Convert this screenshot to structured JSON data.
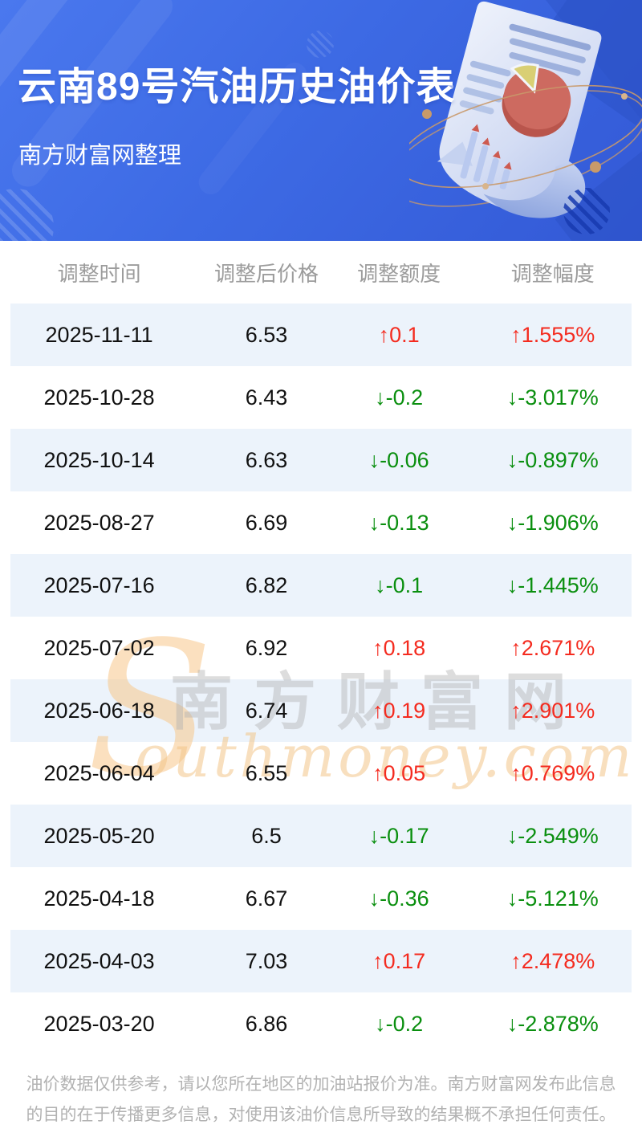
{
  "header": {
    "title": "云南89号汽油历史油价表",
    "subtitle": "南方财富网整理"
  },
  "table": {
    "columns": [
      "调整时间",
      "调整后价格",
      "调整额度",
      "调整幅度"
    ],
    "rows": [
      {
        "date": "2025-11-11",
        "price": "6.53",
        "change": "↑0.1",
        "percent": "↑1.555%",
        "trend": "up"
      },
      {
        "date": "2025-10-28",
        "price": "6.43",
        "change": "↓-0.2",
        "percent": "↓-3.017%",
        "trend": "down"
      },
      {
        "date": "2025-10-14",
        "price": "6.63",
        "change": "↓-0.06",
        "percent": "↓-0.897%",
        "trend": "down"
      },
      {
        "date": "2025-08-27",
        "price": "6.69",
        "change": "↓-0.13",
        "percent": "↓-1.906%",
        "trend": "down"
      },
      {
        "date": "2025-07-16",
        "price": "6.82",
        "change": "↓-0.1",
        "percent": "↓-1.445%",
        "trend": "down"
      },
      {
        "date": "2025-07-02",
        "price": "6.92",
        "change": "↑0.18",
        "percent": "↑2.671%",
        "trend": "up"
      },
      {
        "date": "2025-06-18",
        "price": "6.74",
        "change": "↑0.19",
        "percent": "↑2.901%",
        "trend": "up"
      },
      {
        "date": "2025-06-04",
        "price": "6.55",
        "change": "↑0.05",
        "percent": "↑0.769%",
        "trend": "up"
      },
      {
        "date": "2025-05-20",
        "price": "6.5",
        "change": "↓-0.17",
        "percent": "↓-2.549%",
        "trend": "down"
      },
      {
        "date": "2025-04-18",
        "price": "6.67",
        "change": "↓-0.36",
        "percent": "↓-5.121%",
        "trend": "down"
      },
      {
        "date": "2025-04-03",
        "price": "7.03",
        "change": "↑0.17",
        "percent": "↑2.478%",
        "trend": "up"
      },
      {
        "date": "2025-03-20",
        "price": "6.86",
        "change": "↓-0.2",
        "percent": "↓-2.878%",
        "trend": "down"
      }
    ]
  },
  "watermark": {
    "initial": "S",
    "cn": "南方财富网",
    "en": "outhmoney.com"
  },
  "footer": {
    "disclaimer": "油价数据仅供参考，请以您所在地区的加油站报价为准。南方财富网发布此信息的目的在于传播更多信息，对使用该油价信息所导致的结果概不承担任何责任。"
  },
  "colors": {
    "up": "#f42b1f",
    "down": "#0a8f0f",
    "stripe_row": "#ecf3fb",
    "brand_blue": "#3d6ae4"
  }
}
